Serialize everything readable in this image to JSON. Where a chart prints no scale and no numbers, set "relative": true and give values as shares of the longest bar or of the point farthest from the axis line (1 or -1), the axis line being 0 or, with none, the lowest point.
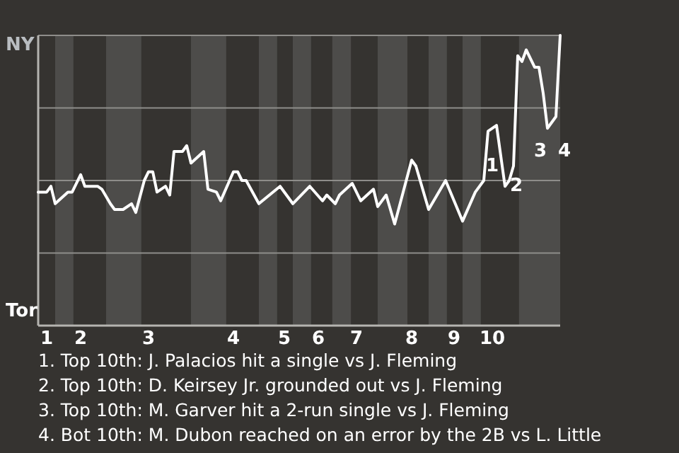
{
  "chart_data": {
    "type": "line",
    "relative": true,
    "categories": [
      null,
      null,
      "1",
      null,
      null,
      null,
      null,
      null,
      null,
      null,
      "2",
      null,
      null,
      null,
      null,
      null,
      null,
      null,
      null,
      null,
      null,
      null,
      null,
      null,
      null,
      null,
      "3",
      null,
      null,
      null,
      null,
      null,
      null,
      null,
      null,
      null,
      null,
      null,
      null,
      null,
      null,
      null,
      null,
      null,
      null,
      null,
      "4",
      null,
      null,
      null,
      null,
      null,
      null,
      null,
      null,
      null,
      null,
      null,
      "5",
      null,
      null,
      null,
      null,
      null,
      null,
      null,
      "6",
      null,
      null,
      null,
      null,
      null,
      null,
      null,
      null,
      "7",
      null,
      null,
      null,
      null,
      null,
      null,
      null,
      null,
      null,
      null,
      null,
      null,
      "8",
      null,
      null,
      null,
      null,
      null,
      null,
      null,
      null,
      null,
      "9",
      null,
      null,
      null,
      null,
      null,
      null,
      null,
      null,
      "10",
      null,
      null,
      null,
      null,
      null,
      null,
      null,
      null,
      null,
      null,
      null,
      null,
      null,
      null,
      null,
      null
    ],
    "series": [
      {
        "color": "#ffffff",
        "values": [
          0.46,
          null,
          0.46,
          0.48,
          0.42,
          null,
          null,
          0.46,
          0.46,
          null,
          0.52,
          0.48,
          null,
          null,
          0.48,
          0.47,
          null,
          0.42,
          0.4,
          null,
          0.4,
          null,
          0.42,
          0.39,
          null,
          0.5,
          0.53,
          0.53,
          0.46,
          null,
          0.48,
          0.45,
          0.6,
          null,
          0.6,
          0.62,
          0.56,
          null,
          null,
          0.6,
          0.47,
          null,
          0.46,
          0.43,
          null,
          null,
          0.53,
          0.53,
          0.5,
          0.5,
          null,
          null,
          0.42,
          null,
          null,
          null,
          null,
          0.48,
          null,
          null,
          0.42,
          null,
          null,
          null,
          0.48,
          null,
          null,
          0.43,
          0.45,
          null,
          0.42,
          0.45,
          null,
          null,
          0.49,
          null,
          0.43,
          null,
          null,
          0.47,
          0.41,
          null,
          0.45,
          null,
          0.35,
          null,
          null,
          null,
          0.57,
          0.55,
          null,
          null,
          0.4,
          null,
          null,
          null,
          0.5,
          null,
          null,
          null,
          0.36,
          null,
          null,
          0.46,
          null,
          0.5,
          0.67,
          null,
          0.69,
          null,
          0.48,
          0.5,
          0.55,
          0.93,
          0.91,
          0.95,
          null,
          0.89,
          0.89,
          0.8,
          0.68,
          null,
          0.72,
          1.0
        ]
      }
    ],
    "ref_lines": [
      {
        "axis": "y",
        "value": 0.25,
        "color": "#8e8d8a"
      },
      {
        "axis": "y",
        "value": 0.5,
        "color": "#8e8d8a"
      },
      {
        "axis": "y",
        "value": 0.75,
        "color": "#8e8d8a"
      },
      {
        "axis": "y",
        "value": 1,
        "color": "#8e8d8a"
      }
    ],
    "annotations": [
      "NY",
      "Tor",
      {
        "text": "1",
        "x": "10",
        "y": 0.55
      },
      {
        "text": "2",
        "x": "10",
        "y": 0.48
      },
      {
        "text": "3",
        "x": "10",
        "y": 0.6
      },
      "4",
      "1. Top 10th: J. Palacios hit a single vs J. Fleming",
      "2. Top 10th: D. Keirsey Jr. grounded out vs J. Fleming",
      "3. Top 10th: M. Garver hit a 2-run single vs J. Fleming",
      "4. Bot 10th: M. Dubon reached on an error by the 2B vs L. Little"
    ],
    "marker": "none",
    "line_style": "solid"
  }
}
